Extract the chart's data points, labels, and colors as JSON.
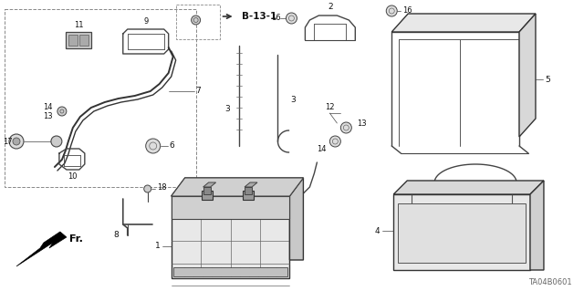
{
  "bg_color": "#ffffff",
  "diagram_code": "TA04B0601",
  "line_color": "#444444",
  "label_color": "#111111",
  "fig_w": 6.4,
  "fig_h": 3.19,
  "dpi": 100
}
